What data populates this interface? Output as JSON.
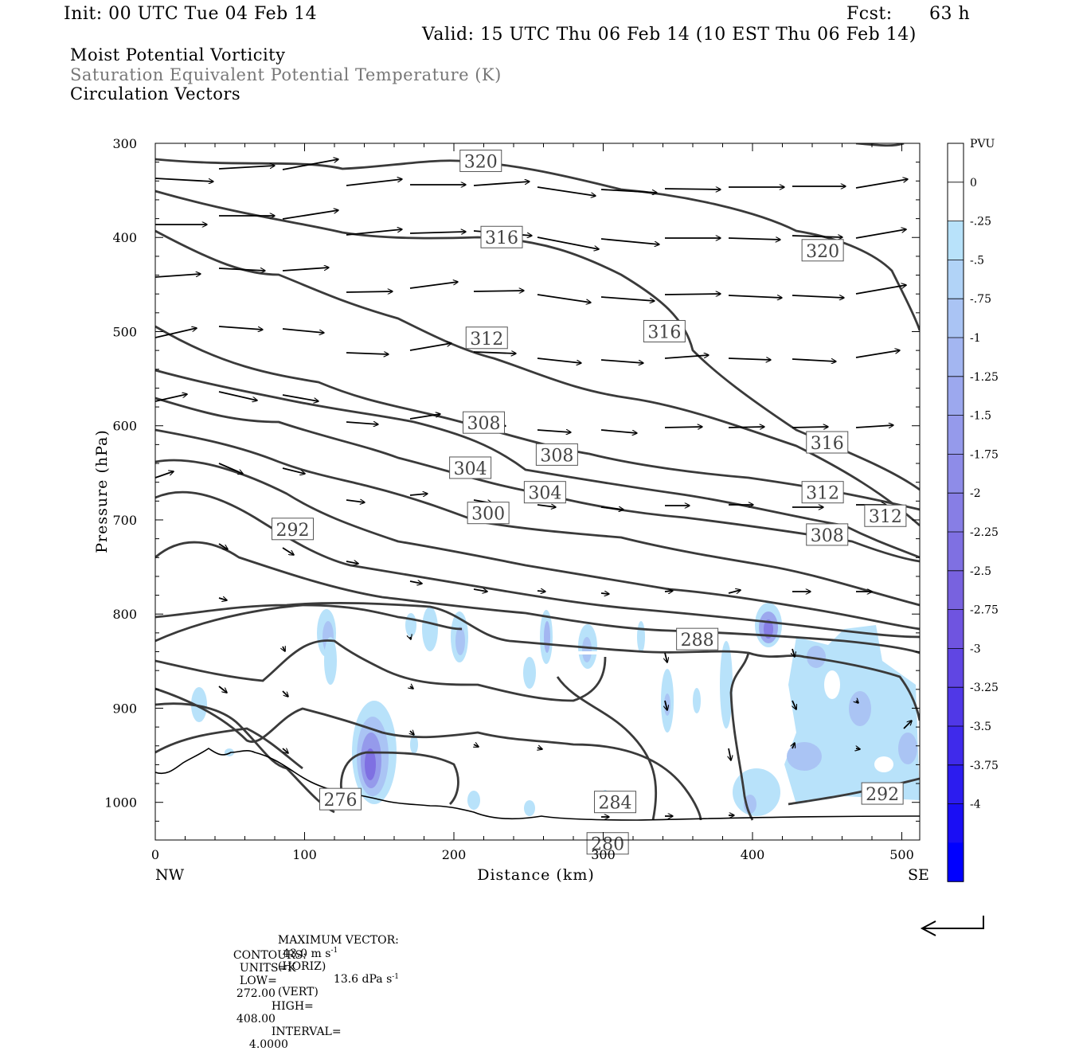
{
  "header": {
    "init": "Init: 00 UTC Tue 04 Feb 14",
    "fcst_label": "Fcst:",
    "fcst_value": "63 h",
    "valid": "Valid: 15 UTC Thu 06 Feb 14 (10 EST Thu 06 Feb 14)"
  },
  "titles": {
    "line1": "Moist Potential Vorticity",
    "line2": "Saturation Equivalent Potential Temperature (K)",
    "line3": "Circulation Vectors"
  },
  "colors": {
    "contour": "#3a3a3a",
    "terrain": "#000000",
    "gray_text": "#777777"
  },
  "chart_data": {
    "type": "contour",
    "xlabel": "Distance (km)",
    "ylabel": "Pressure (hPa)",
    "xlim": [
      0,
      512
    ],
    "ylim": [
      1040,
      300
    ],
    "xticks": [
      0,
      100,
      200,
      300,
      400,
      500
    ],
    "yticks": [
      300,
      400,
      500,
      600,
      700,
      800,
      900,
      1000
    ],
    "x_end_labels": {
      "left": "NW",
      "right": "SE"
    },
    "colorbar": {
      "unit": "PVU",
      "labels": [
        "0",
        "-.25",
        "-.5",
        "-.75",
        "-1",
        "-1.25",
        "-1.5",
        "-1.75",
        "-2",
        "-2.25",
        "-2.5",
        "-2.75",
        "-3",
        "-3.25",
        "-3.5",
        "-3.75",
        "-4"
      ],
      "colors": [
        "#ffffff",
        "#ffffff",
        "#b8e2fa",
        "#b1d3f7",
        "#aac4f4",
        "#a3b6f1",
        "#9ca8ee",
        "#959aeb",
        "#8e8ce8",
        "#877ee5",
        "#7f70e2",
        "#7862df",
        "#6f54e0",
        "#6046e3",
        "#5038e7",
        "#3f2aeb",
        "#2c1cef",
        "#1a0ef4",
        "#0000ff"
      ]
    },
    "contour_labels": [
      {
        "text": "320",
        "x": 218,
        "p": 319
      },
      {
        "text": "316",
        "x": 232,
        "p": 400
      },
      {
        "text": "320",
        "x": 447,
        "p": 414
      },
      {
        "text": "312",
        "x": 222,
        "p": 507
      },
      {
        "text": "316",
        "x": 341,
        "p": 500
      },
      {
        "text": "308",
        "x": 220,
        "p": 597
      },
      {
        "text": "316",
        "x": 450,
        "p": 618
      },
      {
        "text": "308",
        "x": 269,
        "p": 631
      },
      {
        "text": "304",
        "x": 211,
        "p": 645
      },
      {
        "text": "304",
        "x": 261,
        "p": 671
      },
      {
        "text": "312",
        "x": 447,
        "p": 671
      },
      {
        "text": "312",
        "x": 489,
        "p": 696
      },
      {
        "text": "300",
        "x": 223,
        "p": 693
      },
      {
        "text": "308",
        "x": 450,
        "p": 716
      },
      {
        "text": "292",
        "x": 92,
        "p": 710
      },
      {
        "text": "288",
        "x": 363,
        "p": 827
      },
      {
        "text": "284",
        "x": 308,
        "p": 1000
      },
      {
        "text": "280",
        "x": 303,
        "p": 1044
      },
      {
        "text": "292",
        "x": 487,
        "p": 991
      },
      {
        "text": "276",
        "x": 124,
        "p": 997
      }
    ],
    "footer": {
      "max_vector_label": "MAXIMUM VECTOR:",
      "horiz_value": "43.0 m s",
      "horiz_unit": "(HORIZ)",
      "vert_value": "13.6 dPa s",
      "vert_unit": "(VERT)",
      "exponent": "-1",
      "contours_label": "CONTOURS:",
      "units": "UNITS=K",
      "low_label": "LOW=",
      "low_value": "272.00",
      "high_label": "HIGH=",
      "high_value": "408.00",
      "interval_label": "INTERVAL=",
      "interval_value": "4.0000"
    }
  }
}
